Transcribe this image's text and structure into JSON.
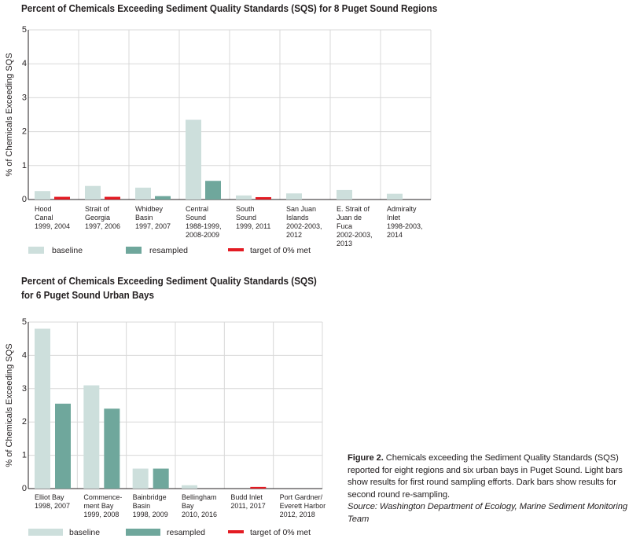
{
  "chart_data": [
    {
      "type": "bar",
      "title": "Percent of Chemicals Exceeding Sediment Quality Standards (SQS) for 8 Puget Sound Regions",
      "ylabel": "% of Chemicals Exceeding SQS",
      "ylim": [
        0,
        5
      ],
      "yticks": [
        "0",
        "1",
        "2",
        "3",
        "4",
        "5"
      ],
      "grid": true,
      "categories": [
        [
          "Hood",
          "Canal",
          "1999, 2004"
        ],
        [
          "Strait of",
          "Georgia",
          "1997, 2006"
        ],
        [
          "Whidbey",
          "Basin",
          "1997, 2007"
        ],
        [
          "Central",
          "Sound",
          "1988-1999,",
          "2008-2009"
        ],
        [
          "South",
          "Sound",
          "1999, 2011"
        ],
        [
          "San Juan",
          "Islands",
          "2002-2003,",
          "2012"
        ],
        [
          "E. Strait of",
          "Juan de",
          "Fuca",
          "2002-2003,",
          "2013"
        ],
        [
          "Admiralty",
          "Inlet",
          "1998-2003,",
          "2014"
        ]
      ],
      "series": [
        {
          "name": "baseline",
          "values": [
            0.25,
            0.4,
            0.35,
            2.35,
            0.12,
            0.18,
            0.28,
            0.17
          ]
        },
        {
          "name": "resampled",
          "values": [
            0,
            0,
            0.1,
            0.55,
            0,
            0,
            0,
            0
          ]
        },
        {
          "name": "target of 0% met",
          "values": [
            0.08,
            0.08,
            0,
            0,
            0.07,
            0,
            0,
            0
          ]
        }
      ],
      "legend_position": "bottom"
    },
    {
      "type": "bar",
      "title": [
        "Percent of Chemicals Exceeding Sediment Quality Standards (SQS)",
        "for 6 Puget Sound Urban Bays"
      ],
      "ylabel": "% of Chemicals Exceeding SQS",
      "ylim": [
        0,
        5
      ],
      "yticks": [
        "0",
        "1",
        "2",
        "3",
        "4",
        "5"
      ],
      "grid": true,
      "categories": [
        [
          "Elliot Bay",
          "1998, 2007"
        ],
        [
          "Commence-",
          "ment Bay",
          "1999, 2008"
        ],
        [
          "Bainbridge",
          "Basin",
          "1998, 2009"
        ],
        [
          "Bellingham",
          "Bay",
          "2010, 2016"
        ],
        [
          "Budd Inlet",
          "2011, 2017"
        ],
        [
          "Port Gardner/",
          "Everett Harbor",
          "2012, 2018"
        ]
      ],
      "series": [
        {
          "name": "baseline",
          "values": [
            4.8,
            3.1,
            0.6,
            0.1,
            0,
            0
          ]
        },
        {
          "name": "resampled",
          "values": [
            2.55,
            2.4,
            0.6,
            0,
            0,
            0
          ]
        },
        {
          "name": "target of 0% met",
          "values": [
            0,
            0,
            0,
            0,
            0.05,
            0
          ]
        }
      ],
      "legend_position": "bottom"
    }
  ],
  "colors": {
    "baseline": "#cddfdc",
    "resampled": "#6fa79c",
    "target": "#e31b23",
    "grid": "#d8d8d8",
    "axis": "#231f20"
  },
  "caption": {
    "label": "Figure 2.",
    "text": " Chemicals exceeding the Sediment Quality Standards (SQS) reported for eight regions and six urban bays in Puget Sound. Light bars show results for first round sampling efforts. Dark bars show results for second round re-sampling.",
    "source": "Source: Washington Department of Ecology, Marine Sediment Monitoring Team"
  }
}
